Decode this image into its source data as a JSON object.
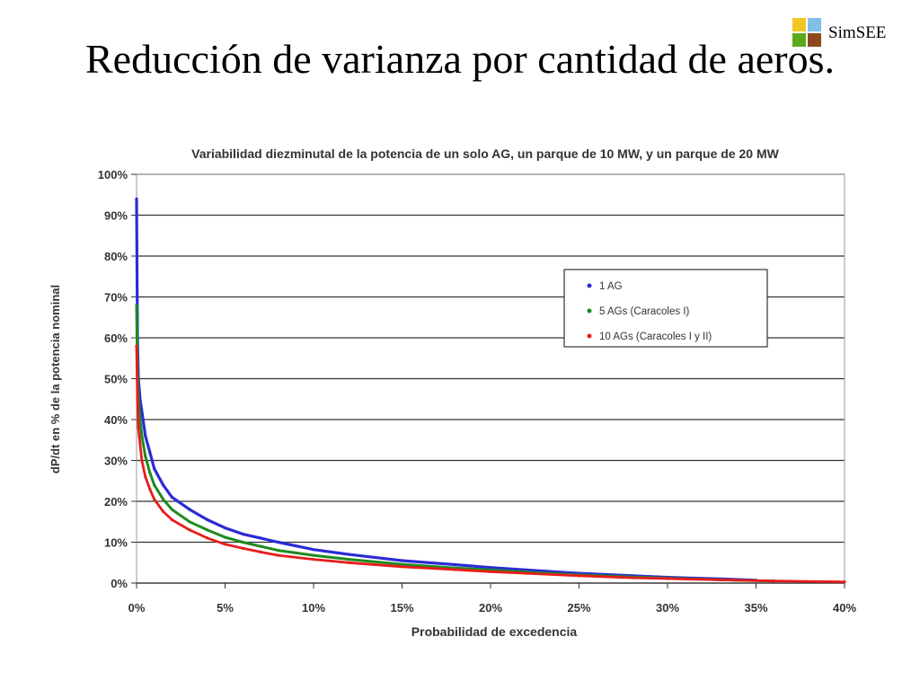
{
  "slide": {
    "title": "Reducción de varianza por cantidad de aeros."
  },
  "logo": {
    "text": "SimSEE",
    "colors": [
      "#f3c623",
      "#7fbfe8",
      "#5aaa1e",
      "#8b4a1c"
    ]
  },
  "chart_data": {
    "type": "line",
    "title": "Variabilidad  diezminutal de la potencia de un solo AG, un parque de 10 MW, y un parque de 20 MW",
    "xlabel": "Probabilidad  de excedencia",
    "ylabel": "dP/dt en % de la potencia nominal",
    "xlim": [
      0,
      40
    ],
    "ylim": [
      0,
      100
    ],
    "x_ticks": [
      "0%",
      "5%",
      "10%",
      "15%",
      "20%",
      "25%",
      "30%",
      "35%",
      "40%"
    ],
    "y_ticks": [
      "0%",
      "10%",
      "20%",
      "30%",
      "40%",
      "50%",
      "60%",
      "70%",
      "80%",
      "90%",
      "100%"
    ],
    "grid": "horizontal",
    "legend_position": "top-right",
    "series": [
      {
        "name": "1 AG",
        "color": "#2b2bd6",
        "x": [
          0,
          0.05,
          0.1,
          0.2,
          0.3,
          0.5,
          0.75,
          1,
          1.5,
          2,
          3,
          4,
          5,
          6,
          7,
          8,
          10,
          12,
          15,
          18,
          20,
          22,
          25,
          28,
          30,
          33,
          35
        ],
        "y": [
          94,
          60,
          50,
          45,
          42,
          36,
          32,
          28,
          24,
          21,
          18,
          15.5,
          13.5,
          12,
          11,
          10,
          8.2,
          7,
          5.5,
          4.5,
          3.8,
          3.2,
          2.4,
          1.8,
          1.4,
          1.0,
          0.7
        ]
      },
      {
        "name": "5 AGs (Caracoles I)",
        "color": "#1f8a1f",
        "x": [
          0,
          0.05,
          0.1,
          0.2,
          0.3,
          0.5,
          0.75,
          1,
          1.5,
          2,
          3,
          4,
          5,
          6,
          7,
          8,
          10,
          12,
          15,
          18,
          20,
          22,
          25,
          28,
          30,
          33,
          36
        ],
        "y": [
          68,
          52,
          45,
          40,
          36,
          31,
          27,
          24,
          20.5,
          18,
          15,
          13,
          11.2,
          10,
          9,
          8,
          6.8,
          5.8,
          4.6,
          3.7,
          3.2,
          2.7,
          2.0,
          1.5,
          1.2,
          0.8,
          0.5
        ]
      },
      {
        "name": "10 AGs (Caracoles I y II)",
        "color": "#e81c1c",
        "x": [
          0,
          0.05,
          0.1,
          0.2,
          0.3,
          0.5,
          0.75,
          1,
          1.5,
          2,
          3,
          4,
          5,
          6,
          7,
          8,
          10,
          12,
          15,
          18,
          20,
          22,
          25,
          28,
          30,
          33,
          36,
          40
        ],
        "y": [
          58,
          45,
          38,
          34,
          30,
          26,
          23,
          20.5,
          17.5,
          15.5,
          13,
          11,
          9.5,
          8.5,
          7.6,
          6.8,
          5.8,
          5,
          4,
          3.3,
          2.8,
          2.4,
          1.8,
          1.3,
          1.1,
          0.8,
          0.5,
          0.3
        ]
      }
    ]
  }
}
